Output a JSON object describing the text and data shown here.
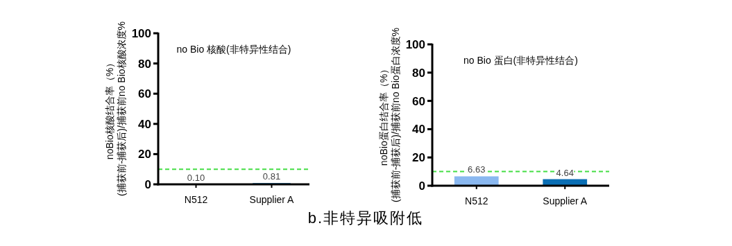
{
  "chart_data": [
    {
      "type": "bar",
      "title": "no Bio 核酸(非特异性结合)",
      "ylabel": "noBio核酸结合率（%）\n(捕获前-捕获后)/捕获前no Bio核酸浓度%",
      "categories": [
        "N512",
        "Supplier A"
      ],
      "values": [
        0.1,
        0.81
      ],
      "colors": [
        "#8ab8f0",
        "#0a6eb4"
      ],
      "value_labels": [
        "0.10",
        "0.81"
      ],
      "ylim": [
        0,
        100
      ],
      "yticks": [
        0,
        20,
        40,
        60,
        80,
        100
      ],
      "ref_lines": [
        {
          "axis": "y",
          "value": 10,
          "color": "#44dd44",
          "line_style": "dashed"
        }
      ]
    },
    {
      "type": "bar",
      "title": "no Bio 蛋白(非特异性结合)",
      "ylabel": "noBio蛋白结合率（%）\n(捕获前-捕获后)/捕获前no Bio蛋白浓度%",
      "categories": [
        "N512",
        "Supplier A"
      ],
      "values": [
        6.63,
        4.64
      ],
      "colors": [
        "#8ab8f0",
        "#0a6eb4"
      ],
      "value_labels": [
        "6.63",
        "4.64"
      ],
      "ylim": [
        0,
        100
      ],
      "yticks": [
        0,
        20,
        40,
        60,
        80,
        100
      ],
      "ref_lines": [
        {
          "axis": "y",
          "value": 10,
          "color": "#44dd44",
          "line_style": "dashed"
        }
      ],
      "annotations": [
        "b.非特异吸附低"
      ]
    }
  ]
}
